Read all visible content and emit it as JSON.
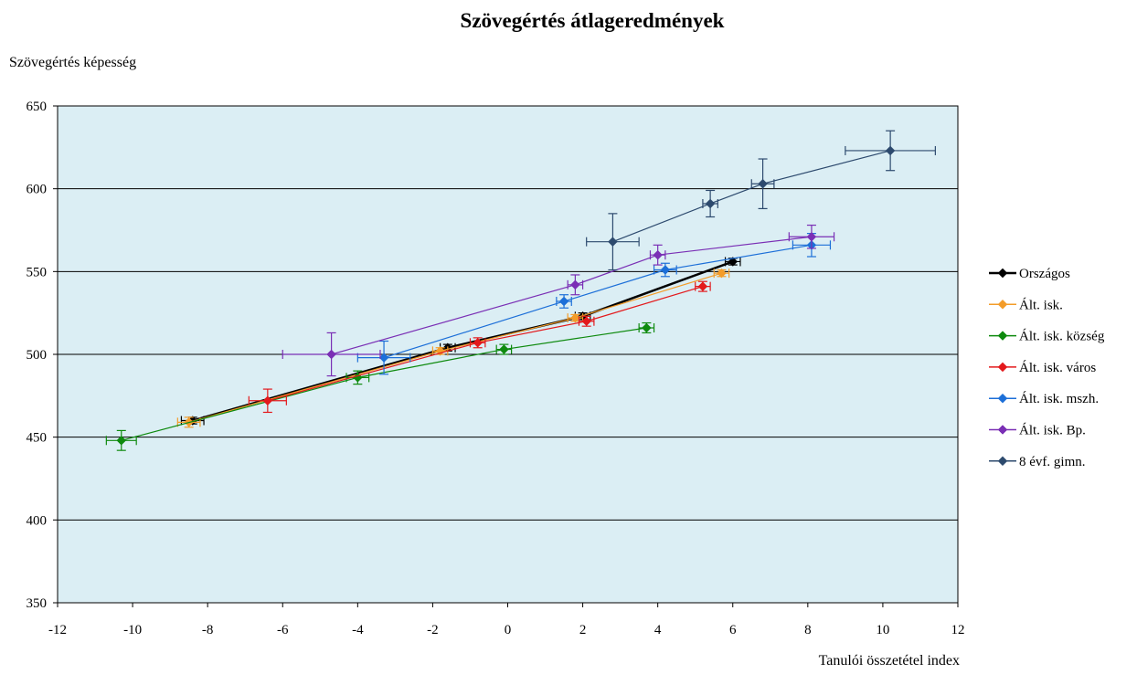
{
  "chart_data": {
    "type": "scatter",
    "title": "Szövegértés átlageredmények",
    "xlabel": "Tanulói összetétel index",
    "ylabel": "Szövegértés képesség",
    "xlim": [
      -12,
      12
    ],
    "ylim": [
      350,
      650
    ],
    "x_ticks": [
      -12,
      -10,
      -8,
      -6,
      -4,
      -2,
      0,
      2,
      4,
      6,
      8,
      10,
      12
    ],
    "y_ticks": [
      350,
      400,
      450,
      500,
      550,
      600,
      650
    ],
    "x_tick_labels": [
      "-12",
      "-10",
      "-8",
      "-6",
      "-4",
      "-2",
      "0",
      "2",
      "4",
      "6",
      "8",
      "10",
      "12"
    ],
    "y_tick_labels": [
      "350",
      "400",
      "450",
      "500",
      "550",
      "600",
      "650"
    ],
    "grid": "horizontal",
    "plot_background": "#DBEEF4",
    "legend_position": "right",
    "series": [
      {
        "name": "Országos",
        "color": "#000000",
        "line_width": 2.5,
        "points": [
          {
            "x": -8.4,
            "y": 460,
            "xerr": 0.3,
            "yerr": 2
          },
          {
            "x": -1.6,
            "y": 504,
            "xerr": 0.2,
            "yerr": 2
          },
          {
            "x": 2.0,
            "y": 523,
            "xerr": 0.2,
            "yerr": 2
          },
          {
            "x": 6.0,
            "y": 556,
            "xerr": 0.2,
            "yerr": 2
          }
        ]
      },
      {
        "name": "Ált. isk.",
        "color": "#F39C29",
        "line_width": 1.2,
        "points": [
          {
            "x": -8.5,
            "y": 459,
            "xerr": 0.3,
            "yerr": 3
          },
          {
            "x": -1.8,
            "y": 502,
            "xerr": 0.2,
            "yerr": 2
          },
          {
            "x": 1.8,
            "y": 522,
            "xerr": 0.2,
            "yerr": 2
          },
          {
            "x": 5.7,
            "y": 549,
            "xerr": 0.2,
            "yerr": 2
          }
        ]
      },
      {
        "name": "Ált. isk. község",
        "color": "#0E8A0E",
        "line_width": 1.2,
        "points": [
          {
            "x": -10.3,
            "y": 448,
            "xerr": 0.4,
            "yerr": 6
          },
          {
            "x": -4.0,
            "y": 486,
            "xerr": 0.3,
            "yerr": 4
          },
          {
            "x": -0.1,
            "y": 503,
            "xerr": 0.2,
            "yerr": 3
          },
          {
            "x": 3.7,
            "y": 516,
            "xerr": 0.2,
            "yerr": 3
          }
        ]
      },
      {
        "name": "Ált. isk. város",
        "color": "#E3191C",
        "line_width": 1.2,
        "points": [
          {
            "x": -6.4,
            "y": 472,
            "xerr": 0.5,
            "yerr": 7
          },
          {
            "x": -0.8,
            "y": 507,
            "xerr": 0.2,
            "yerr": 3
          },
          {
            "x": 2.1,
            "y": 520,
            "xerr": 0.2,
            "yerr": 3
          },
          {
            "x": 5.2,
            "y": 541,
            "xerr": 0.2,
            "yerr": 3
          }
        ]
      },
      {
        "name": "Ált. isk. mszh.",
        "color": "#1C6FD8",
        "line_width": 1.2,
        "points": [
          {
            "x": -3.3,
            "y": 498,
            "xerr": 0.7,
            "yerr": 10
          },
          {
            "x": 1.5,
            "y": 532,
            "xerr": 0.2,
            "yerr": 4
          },
          {
            "x": 4.2,
            "y": 551,
            "xerr": 0.3,
            "yerr": 4
          },
          {
            "x": 8.1,
            "y": 566,
            "xerr": 0.5,
            "yerr": 7
          }
        ]
      },
      {
        "name": "Ált. isk. Bp.",
        "color": "#7A2FB5",
        "line_width": 1.2,
        "points": [
          {
            "x": -4.7,
            "y": 500,
            "xerr": 1.3,
            "yerr": 13
          },
          {
            "x": 1.8,
            "y": 542,
            "xerr": 0.2,
            "yerr": 6
          },
          {
            "x": 4.0,
            "y": 560,
            "xerr": 0.2,
            "yerr": 6
          },
          {
            "x": 8.1,
            "y": 571,
            "xerr": 0.6,
            "yerr": 7
          }
        ]
      },
      {
        "name": "8 évf. gimn.",
        "color": "#2D4A6E",
        "line_width": 1.2,
        "points": [
          {
            "x": 2.8,
            "y": 568,
            "xerr": 0.7,
            "yerr": 17
          },
          {
            "x": 5.4,
            "y": 591,
            "xerr": 0.2,
            "yerr": 8
          },
          {
            "x": 6.8,
            "y": 603,
            "xerr": 0.3,
            "yerr": 15
          },
          {
            "x": 10.2,
            "y": 623,
            "xerr": 1.2,
            "yerr": 12
          }
        ]
      }
    ]
  }
}
